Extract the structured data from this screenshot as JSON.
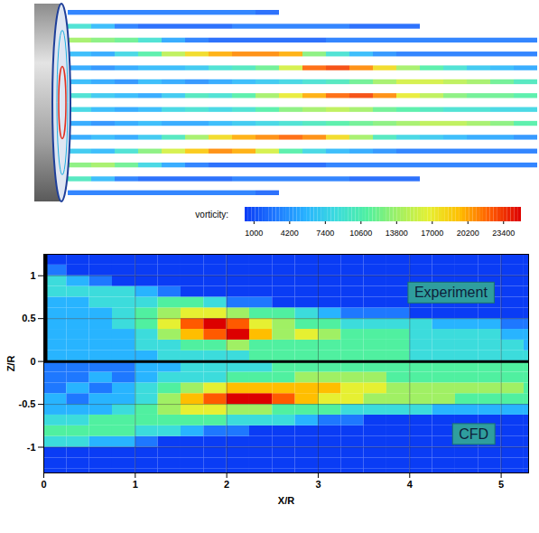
{
  "chart_data": [
    {
      "type": "contour_field",
      "tick_labels": false,
      "colorbar_label": "vorticity:",
      "colorbar_range": [
        200,
        25000
      ],
      "colorbar_ticks": [
        1000,
        4200,
        7400,
        10600,
        13800,
        17000,
        20200,
        23400
      ],
      "vorticity_grid": [
        [
          3000,
          3000,
          3000,
          3000,
          3000,
          3000,
          3000,
          3000,
          2000,
          0,
          0,
          0,
          0,
          0,
          0,
          0,
          0,
          0,
          0,
          0
        ],
        [
          9000,
          6000,
          3000,
          2000,
          2000,
          2000,
          2000,
          3000,
          3000,
          3000,
          3000,
          3000,
          2000,
          2000,
          2000,
          0,
          0,
          0,
          0,
          0
        ],
        [
          14000,
          13000,
          12000,
          9000,
          5000,
          3000,
          2000,
          2000,
          2000,
          2000,
          2000,
          3000,
          3000,
          3000,
          3000,
          3000,
          3000,
          3000,
          3000,
          3000
        ],
        [
          6000,
          5000,
          8000,
          11000,
          15000,
          18000,
          20000,
          21000,
          21000,
          20000,
          13000,
          9000,
          6000,
          4000,
          3000,
          3000,
          3000,
          3000,
          3000,
          3000
        ],
        [
          5000,
          4000,
          5000,
          6000,
          6000,
          7000,
          9000,
          10000,
          12000,
          16000,
          22000,
          23000,
          21000,
          18000,
          14000,
          11000,
          9000,
          7000,
          6000,
          5000
        ],
        [
          6000,
          5000,
          4000,
          6000,
          5000,
          4000,
          5000,
          6000,
          7000,
          8000,
          9000,
          10000,
          12000,
          14000,
          16000,
          16000,
          15000,
          14000,
          12000,
          10000
        ],
        [
          9000,
          7000,
          6000,
          5000,
          7000,
          10000,
          9000,
          11000,
          14000,
          17000,
          20000,
          22000,
          23000,
          21000,
          17000,
          15000,
          13000,
          12000,
          12000,
          11000
        ],
        [
          8000,
          6000,
          5000,
          6000,
          8000,
          9000,
          8000,
          9000,
          11000,
          13000,
          14000,
          15000,
          14000,
          12000,
          11000,
          10000,
          9000,
          9000,
          8000,
          8000
        ],
        [
          5000,
          4000,
          5000,
          6000,
          5000,
          5000,
          6000,
          7000,
          8000,
          9000,
          10000,
          11000,
          12000,
          13000,
          14000,
          15000,
          15000,
          14000,
          13000,
          11000
        ],
        [
          5000,
          6000,
          5000,
          7000,
          10000,
          14000,
          18000,
          20000,
          21000,
          22000,
          21000,
          18000,
          14000,
          10000,
          8000,
          7000,
          6000,
          5000,
          5000,
          4000
        ],
        [
          7000,
          6000,
          9000,
          13000,
          16000,
          19000,
          21000,
          20000,
          16000,
          11000,
          8000,
          6000,
          5000,
          4000,
          3000,
          3000,
          3000,
          3000,
          3000,
          3000
        ],
        [
          13000,
          14000,
          12000,
          8000,
          5000,
          3000,
          2000,
          2000,
          2000,
          2000,
          2000,
          3000,
          3000,
          3000,
          3000,
          3000,
          3000,
          3000,
          3000,
          3000
        ],
        [
          10000,
          6000,
          3000,
          2000,
          2000,
          2000,
          2000,
          3000,
          3000,
          3000,
          3000,
          3000,
          2000,
          2000,
          2000,
          0,
          0,
          0,
          0,
          0
        ],
        [
          3000,
          3000,
          3000,
          3000,
          3000,
          3000,
          3000,
          3000,
          2000,
          0,
          0,
          0,
          0,
          0,
          0,
          0,
          0,
          0,
          0,
          0
        ]
      ]
    },
    {
      "type": "heatmap",
      "xlabel": "X/R",
      "ylabel": "Z/R",
      "xlim": [
        0,
        5.3
      ],
      "ylim": [
        -1.3,
        1.25
      ],
      "xticks": [
        0,
        1,
        2,
        3,
        4,
        5
      ],
      "yticks": [
        -1,
        -0.5,
        0,
        0.5,
        1
      ],
      "grid": true,
      "color_range": [
        0,
        9
      ],
      "x_edges": [
        0,
        0.25,
        0.5,
        0.75,
        1,
        1.25,
        1.5,
        1.75,
        2,
        2.25,
        2.5,
        2.75,
        3,
        3.25,
        3.5,
        3.75,
        4,
        4.25,
        4.5,
        4.75,
        5,
        5.25,
        5.5
      ],
      "panels": [
        {
          "z_edges": [
            0,
            0.125,
            0.25,
            0.375,
            0.5,
            0.625,
            0.75,
            0.875,
            1,
            1.125,
            1.25
          ],
          "cells": [
            [
              2,
              2,
              2,
              2,
              2,
              3,
              3,
              3,
              3,
              4,
              4,
              4,
              4,
              4,
              4,
              4,
              3,
              3,
              3,
              3,
              3,
              3
            ],
            [
              2,
              2,
              2,
              2,
              3,
              3,
              4,
              4,
              5,
              4,
              4,
              4,
              4,
              4,
              4,
              4,
              3,
              3,
              3,
              3,
              3,
              2
            ],
            [
              2,
              2,
              2,
              2,
              3,
              5,
              7,
              8,
              9,
              7,
              5,
              6,
              5,
              4,
              4,
              4,
              3,
              3,
              3,
              3,
              2,
              2
            ],
            [
              2,
              2,
              2,
              3,
              4,
              6,
              8,
              9,
              8,
              6,
              5,
              4,
              4,
              3,
              3,
              3,
              3,
              2,
              2,
              2,
              1,
              1
            ],
            [
              2,
              2,
              2,
              3,
              4,
              5,
              6,
              6,
              5,
              4,
              4,
              3,
              2,
              1,
              1,
              1,
              0,
              0,
              0,
              0,
              0,
              0
            ],
            [
              2,
              2,
              3,
              3,
              3,
              4,
              4,
              3,
              1,
              1,
              0,
              0,
              0,
              0,
              0,
              0,
              0,
              0,
              0,
              0,
              0,
              0
            ],
            [
              3,
              3,
              3,
              3,
              2,
              1,
              0,
              0,
              0,
              0,
              0,
              0,
              0,
              0,
              0,
              0,
              0,
              0,
              0,
              0,
              0,
              0
            ],
            [
              3,
              2,
              1,
              0,
              0,
              0,
              0,
              0,
              0,
              0,
              0,
              0,
              0,
              0,
              0,
              0,
              0,
              0,
              0,
              0,
              0,
              0
            ],
            [
              1,
              0,
              0,
              0,
              0,
              0,
              0,
              0,
              0,
              0,
              0,
              0,
              0,
              0,
              0,
              0,
              0,
              0,
              0,
              0,
              0,
              0
            ],
            [
              0,
              0,
              0,
              0,
              0,
              0,
              0,
              0,
              0,
              0,
              0,
              0,
              0,
              0,
              0,
              0,
              0,
              0,
              0,
              0,
              0,
              0
            ]
          ]
        },
        {
          "z_edges": [
            -1.375,
            -1.25,
            -1.125,
            -1,
            -0.875,
            -0.75,
            -0.625,
            -0.5,
            -0.375,
            -0.25,
            -0.125,
            0
          ],
          "cells": [
            [
              0,
              0,
              0,
              0,
              0,
              0,
              0,
              0,
              0,
              0,
              0,
              0,
              0,
              0,
              0,
              0,
              0,
              0,
              0,
              0,
              0,
              0
            ],
            [
              0,
              0,
              0,
              0,
              0,
              0,
              0,
              0,
              0,
              0,
              0,
              0,
              0,
              0,
              0,
              0,
              0,
              0,
              0,
              0,
              0,
              0
            ],
            [
              0,
              0,
              0,
              0,
              0,
              0,
              0,
              0,
              0,
              0,
              0,
              0,
              0,
              0,
              0,
              0,
              0,
              0,
              0,
              0,
              0,
              0
            ],
            [
              3,
              3,
              2,
              2,
              1,
              0,
              0,
              0,
              0,
              0,
              0,
              0,
              0,
              0,
              0,
              0,
              0,
              0,
              0,
              0,
              0,
              0
            ],
            [
              4,
              4,
              4,
              4,
              3,
              3,
              2,
              1,
              1,
              0,
              0,
              0,
              0,
              0,
              0,
              0,
              0,
              0,
              0,
              0,
              0,
              0
            ],
            [
              3,
              3,
              4,
              4,
              4,
              4,
              4,
              4,
              3,
              3,
              3,
              2,
              1,
              1,
              0,
              0,
              0,
              0,
              0,
              0,
              0,
              0
            ],
            [
              2,
              2,
              2,
              3,
              4,
              5,
              6,
              6,
              5,
              5,
              4,
              4,
              4,
              3,
              3,
              3,
              3,
              2,
              2,
              2,
              2,
              2
            ],
            [
              2,
              1,
              2,
              2,
              3,
              5,
              7,
              8,
              9,
              9,
              8,
              7,
              6,
              6,
              5,
              5,
              5,
              5,
              4,
              4,
              4,
              4
            ],
            [
              1,
              2,
              1,
              2,
              3,
              4,
              5,
              6,
              7,
              7,
              7,
              7,
              7,
              6,
              6,
              5,
              5,
              5,
              5,
              5,
              5,
              4
            ],
            [
              1,
              1,
              2,
              1,
              2,
              3,
              3,
              3,
              4,
              4,
              4,
              5,
              5,
              5,
              5,
              4,
              4,
              4,
              4,
              4,
              4,
              4
            ],
            [
              1,
              1,
              1,
              1,
              2,
              2,
              3,
              3,
              3,
              3,
              4,
              4,
              4,
              4,
              4,
              4,
              4,
              4,
              4,
              4,
              4,
              4
            ]
          ]
        }
      ],
      "annotations": [
        {
          "text": "Experiment",
          "x": 4.45,
          "y": 0.8
        },
        {
          "text": "CFD",
          "x": 4.7,
          "y": -0.85
        }
      ]
    }
  ]
}
